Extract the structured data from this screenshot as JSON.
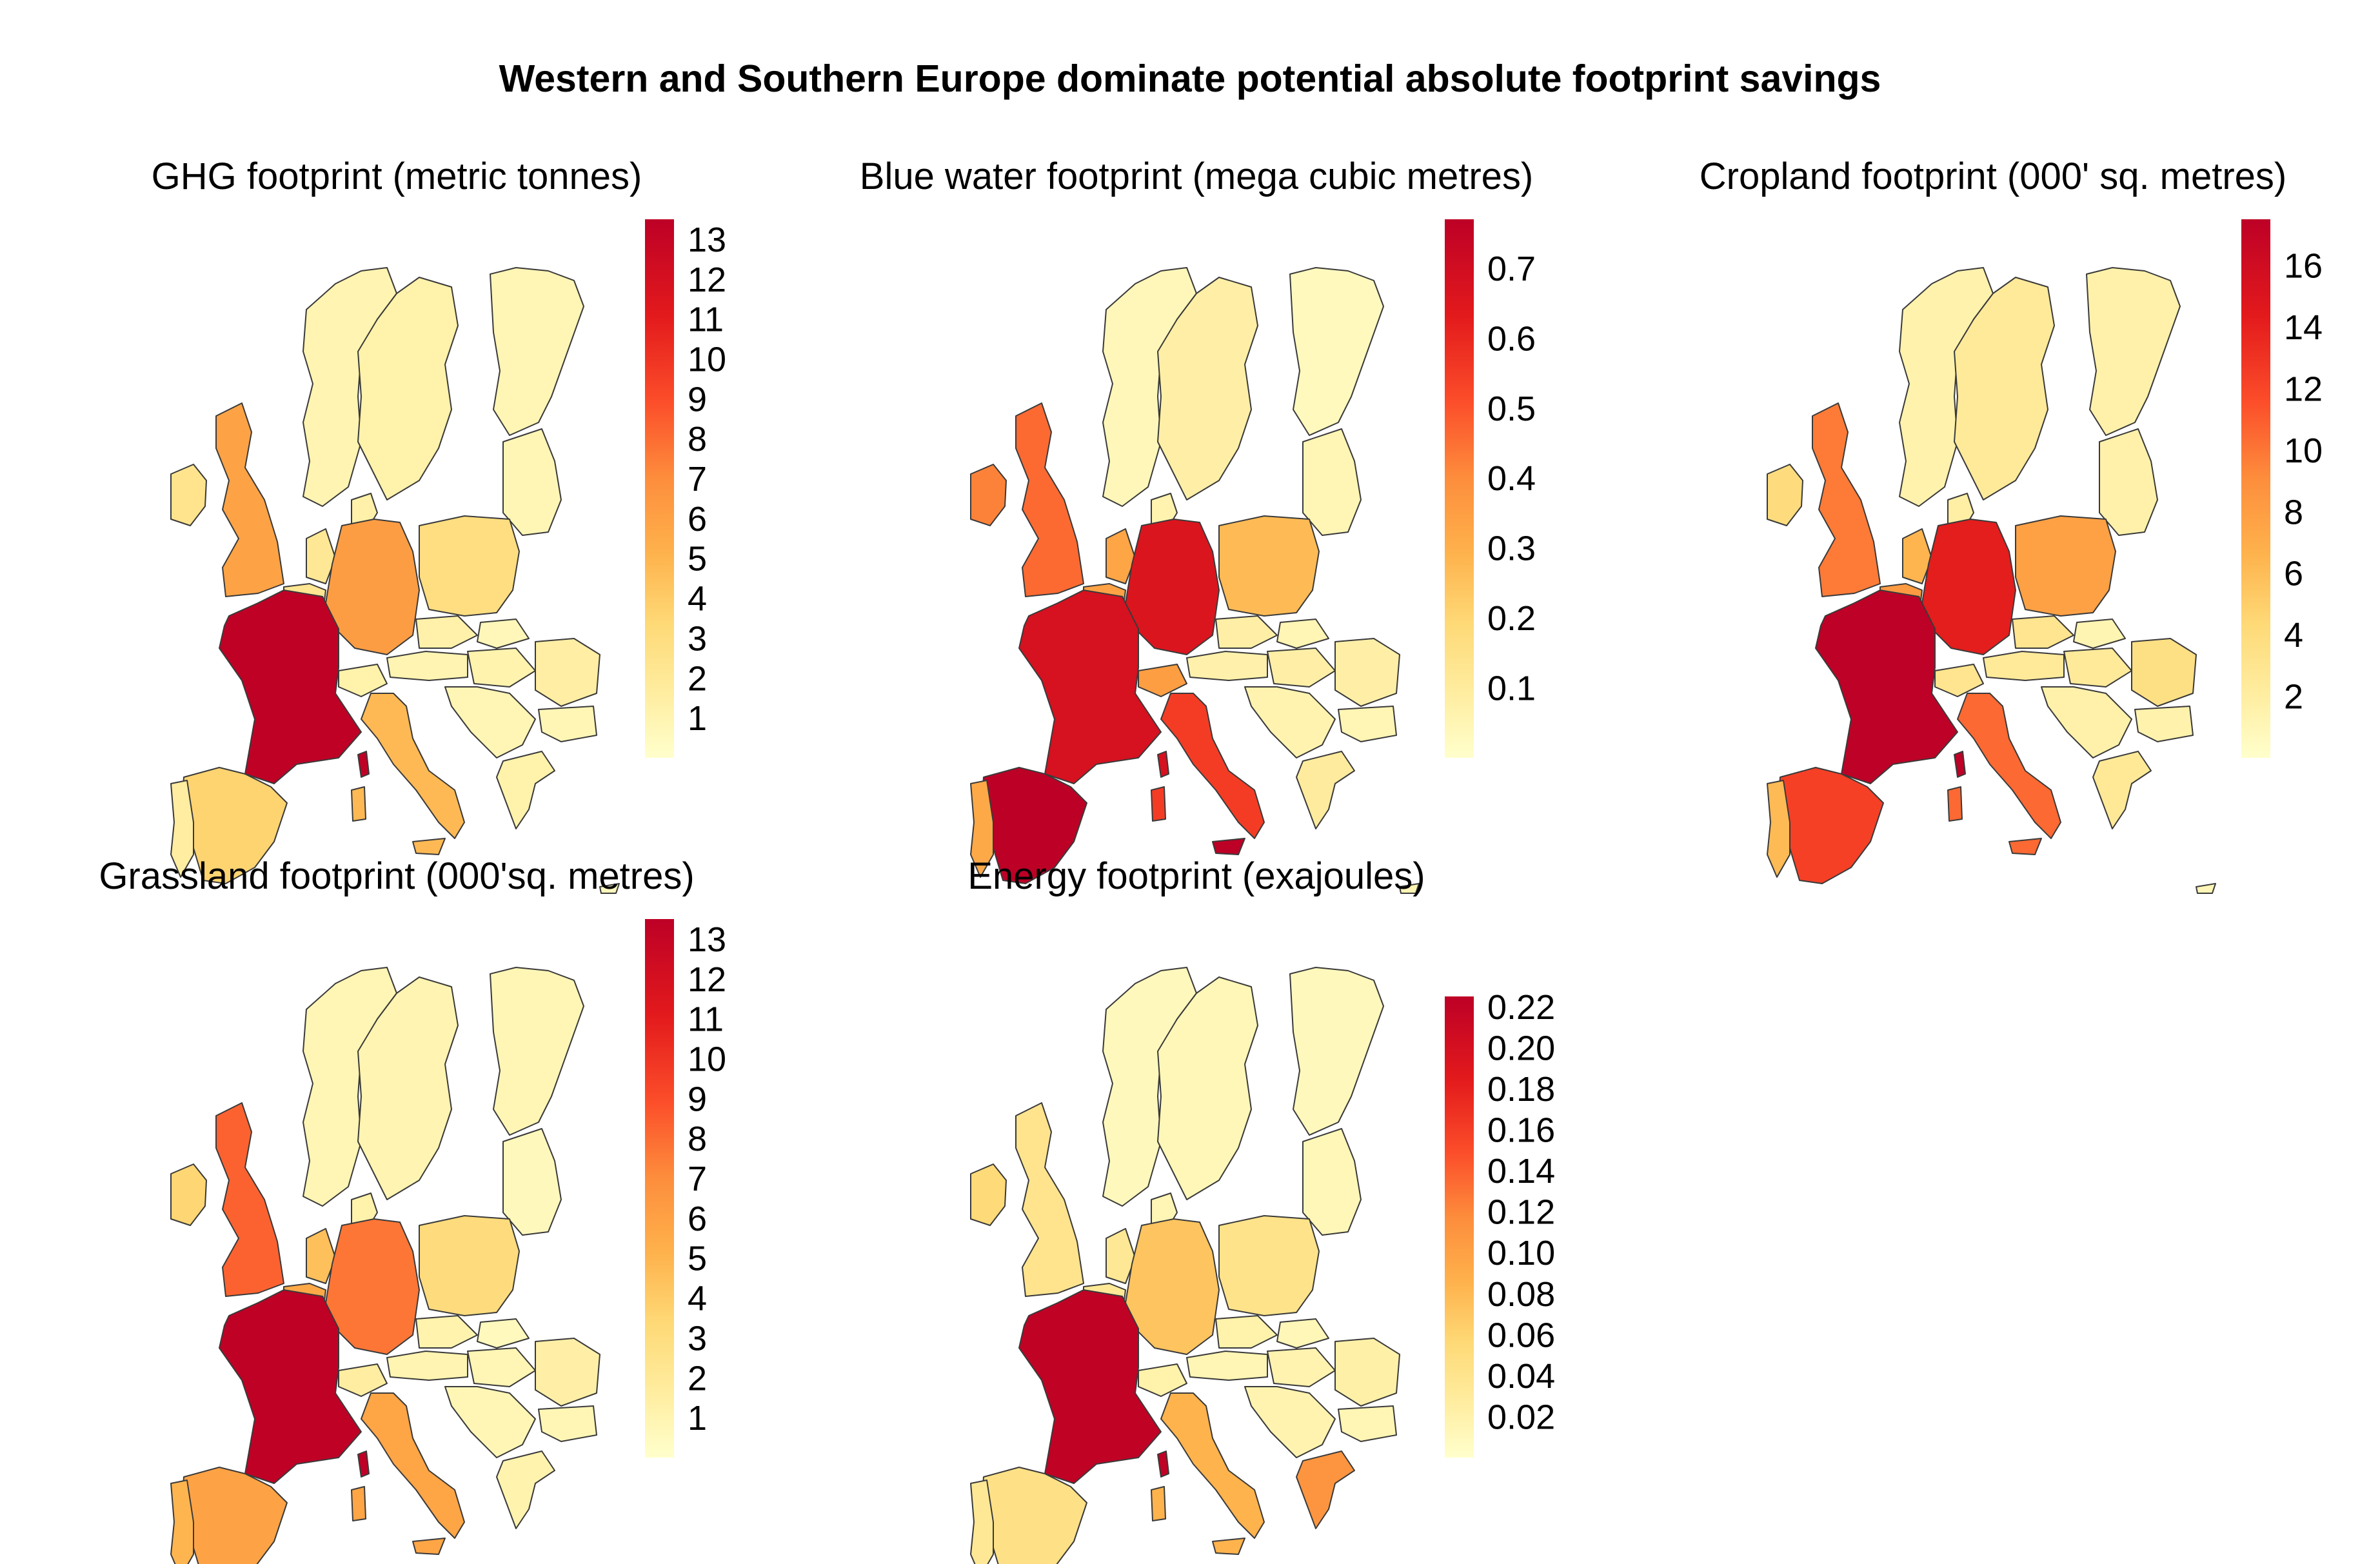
{
  "title": "Western and Southern Europe dominate potential absolute footprint savings",
  "colors": {
    "scale_low": "#FFFFCC",
    "scale_mid": "#FD8D3C",
    "scale_high": "#BD0026",
    "border": "#3a3a3a"
  },
  "chart_data": [
    {
      "type": "choropleth",
      "title": "GHG footprint (metric tonnes)",
      "legend": {
        "min": 0,
        "max": 13.5,
        "ticks": [
          "1",
          "2",
          "3",
          "4",
          "5",
          "6",
          "7",
          "8",
          "9",
          "10",
          "11",
          "12",
          "13"
        ]
      },
      "values": {
        "FR": 13.4,
        "DE": 6.2,
        "UK": 5.9,
        "ES": 3.6,
        "IT": 4.8,
        "PL": 2.9,
        "NL": 2.1,
        "BE": 2.2,
        "IE": 2.4,
        "PT": 1.6,
        "CH": 1.2,
        "AT": 1.0,
        "CZ": 1.3,
        "SK": 0.7,
        "HU": 1.1,
        "RO": 1.5,
        "BG": 0.8,
        "GR": 1.2,
        "SE": 1.2,
        "NO": 1.0,
        "FI": 0.9,
        "DK": 1.3,
        "BALT": 0.8,
        "BALK": 0.9,
        "CO": 13.4,
        "SAR": 4.8,
        "SIC": 4.8,
        "CY": 0.5
      }
    },
    {
      "type": "choropleth",
      "title": "Blue water footprint (mega cubic metres)",
      "legend": {
        "min": 0,
        "max": 0.77,
        "ticks": [
          "0.1",
          "0.2",
          "0.3",
          "0.4",
          "0.5",
          "0.6",
          "0.7"
        ]
      },
      "values": {
        "FR": 0.68,
        "DE": 0.66,
        "UK": 0.46,
        "ES": 0.77,
        "IT": 0.55,
        "PL": 0.27,
        "NL": 0.33,
        "BE": 0.34,
        "IE": 0.42,
        "PT": 0.32,
        "CH": 0.35,
        "AT": 0.07,
        "CZ": 0.08,
        "SK": 0.05,
        "HU": 0.08,
        "RO": 0.08,
        "BG": 0.05,
        "GR": 0.1,
        "SE": 0.08,
        "NO": 0.04,
        "FI": 0.03,
        "DK": 0.06,
        "BALT": 0.05,
        "BALK": 0.06,
        "CO": 0.68,
        "SAR": 0.55,
        "SIC": 0.77,
        "CY": 0.05
      }
    },
    {
      "type": "choropleth",
      "title": "Cropland footprint (000' sq. metres)",
      "legend": {
        "min": 0,
        "max": 17.5,
        "ticks": [
          "2",
          "4",
          "6",
          "8",
          "10",
          "12",
          "14",
          "16"
        ]
      },
      "values": {
        "FR": 17.4,
        "DE": 14.2,
        "UK": 9.8,
        "ES": 12.3,
        "IT": 10.5,
        "PL": 7.8,
        "NL": 6.5,
        "BE": 8.2,
        "IE": 4.0,
        "PT": 6.2,
        "CH": 3.0,
        "AT": 2.4,
        "CZ": 3.0,
        "SK": 1.2,
        "HU": 2.4,
        "RO": 3.6,
        "BG": 1.5,
        "GR": 2.6,
        "SE": 2.4,
        "NO": 1.5,
        "FI": 1.6,
        "DK": 1.9,
        "BALT": 1.6,
        "BALK": 1.6,
        "CO": 17.4,
        "SAR": 10.5,
        "SIC": 10.5,
        "CY": 1.0
      }
    },
    {
      "type": "choropleth",
      "title": "Grassland footprint (000'sq. metres)",
      "legend": {
        "min": 0,
        "max": 13.5,
        "ticks": [
          "1",
          "2",
          "3",
          "4",
          "5",
          "6",
          "7",
          "8",
          "9",
          "10",
          "11",
          "12",
          "13"
        ]
      },
      "values": {
        "FR": 13.4,
        "DE": 7.7,
        "UK": 8.3,
        "ES": 5.9,
        "IT": 5.8,
        "PL": 3.1,
        "NL": 4.5,
        "BE": 5.6,
        "IE": 3.5,
        "PT": 5.0,
        "CH": 1.6,
        "AT": 1.0,
        "CZ": 1.1,
        "SK": 0.5,
        "HU": 0.9,
        "RO": 1.4,
        "BG": 0.8,
        "GR": 1.1,
        "SE": 1.0,
        "NO": 0.9,
        "FI": 0.8,
        "DK": 1.2,
        "BALT": 0.6,
        "BALK": 0.8,
        "CO": 13.4,
        "SAR": 5.8,
        "SIC": 5.8,
        "CY": 0.5
      }
    },
    {
      "type": "choropleth",
      "title": "Energy footprint (exajoules)",
      "legend": {
        "min": 0,
        "max": 0.225,
        "ticks": [
          "0.02",
          "0.04",
          "0.06",
          "0.08",
          "0.10",
          "0.12",
          "0.14",
          "0.16",
          "0.18",
          "0.20",
          "0.22"
        ]
      },
      "values": {
        "FR": 0.222,
        "DE": 0.072,
        "UK": 0.04,
        "ES": 0.045,
        "IT": 0.085,
        "PL": 0.042,
        "NL": 0.035,
        "BE": 0.033,
        "IE": 0.055,
        "PT": 0.035,
        "CH": 0.02,
        "AT": 0.015,
        "CZ": 0.02,
        "SK": 0.012,
        "HU": 0.018,
        "RO": 0.022,
        "BG": 0.015,
        "GR": 0.11,
        "SE": 0.012,
        "NO": 0.01,
        "FI": 0.01,
        "DK": 0.015,
        "BALT": 0.012,
        "BALK": 0.018,
        "CO": 0.222,
        "SAR": 0.085,
        "SIC": 0.085,
        "CY": 0.05
      }
    }
  ]
}
